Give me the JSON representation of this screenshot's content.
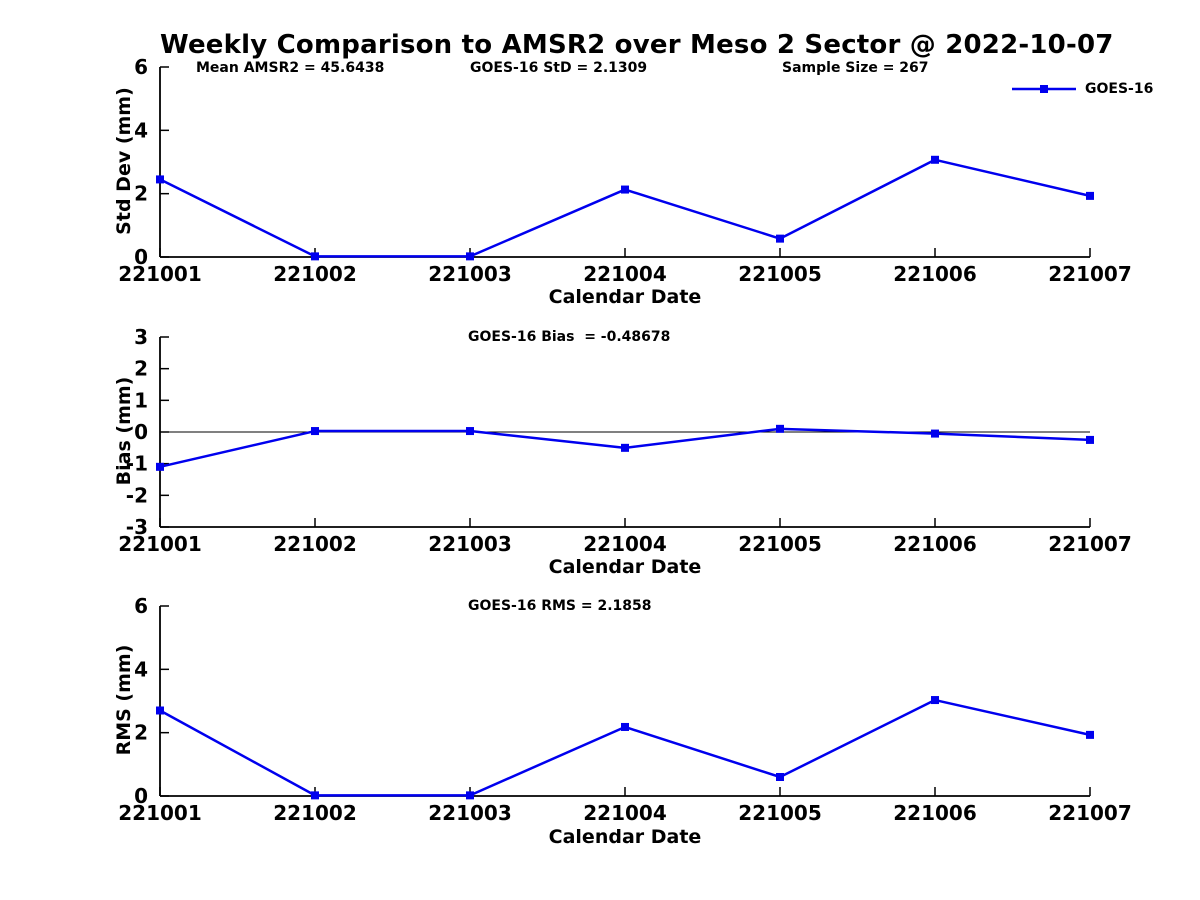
{
  "title": "Weekly Comparison to AMSR2 over Meso 2 Sector @ 2022-10-07",
  "annotations_top": [
    "Mean AMSR2 = 45.6438",
    "GOES-16 StD = 2.1309",
    "Sample Size = 267"
  ],
  "legend": {
    "label": "GOES-16"
  },
  "style": {
    "line_color": "#0000EE",
    "axis_color": "#000000",
    "text_color": "#000000",
    "marker": "square"
  },
  "chart_data": [
    {
      "type": "line",
      "name": "std-dev",
      "series_name": "GOES-16",
      "categories": [
        "221001",
        "221002",
        "221003",
        "221004",
        "221005",
        "221006",
        "221007"
      ],
      "values": [
        2.45,
        0.02,
        0.02,
        2.13,
        0.58,
        3.07,
        1.93
      ],
      "ylabel": "Std Dev (mm)",
      "xlabel": "Calendar Date",
      "ylim": [
        0,
        6
      ],
      "yticks": [
        0,
        2,
        4,
        6
      ],
      "zero_line": false,
      "grid": false,
      "legend_position": "top-right"
    },
    {
      "type": "line",
      "name": "bias",
      "series_name": "GOES-16",
      "annotation": "GOES-16 Bias  = -0.48678",
      "categories": [
        "221001",
        "221002",
        "221003",
        "221004",
        "221005",
        "221006",
        "221007"
      ],
      "values": [
        -1.1,
        0.03,
        0.03,
        -0.5,
        0.1,
        -0.05,
        -0.25
      ],
      "ylabel": "Bias (mm)",
      "xlabel": "Calendar Date",
      "ylim": [
        -3,
        3
      ],
      "yticks": [
        3,
        2,
        1,
        0,
        -1,
        -2,
        -3
      ],
      "zero_line": true,
      "grid": false
    },
    {
      "type": "line",
      "name": "rms",
      "series_name": "GOES-16",
      "annotation": "GOES-16 RMS = 2.1858",
      "categories": [
        "221001",
        "221002",
        "221003",
        "221004",
        "221005",
        "221006",
        "221007"
      ],
      "values": [
        2.7,
        0.02,
        0.02,
        2.18,
        0.6,
        3.03,
        1.93
      ],
      "ylabel": "RMS (mm)",
      "xlabel": "Calendar Date",
      "ylim": [
        0,
        6
      ],
      "yticks": [
        0,
        2,
        4,
        6
      ],
      "zero_line": false,
      "grid": false
    }
  ]
}
